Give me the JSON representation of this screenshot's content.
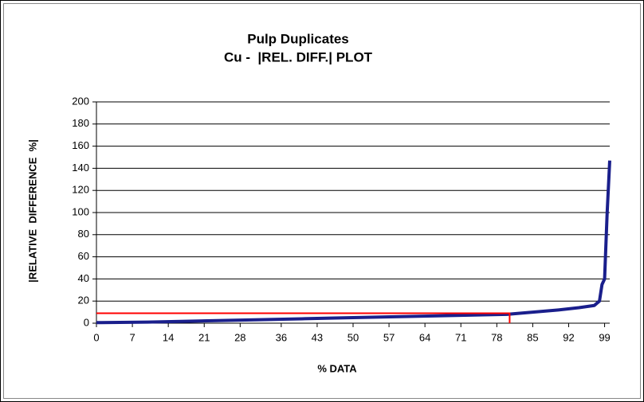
{
  "chart_data": {
    "type": "line",
    "title": "Pulp Duplicates",
    "subtitle": "Cu -  |REL. DIFF.| PLOT",
    "x_label": "% DATA",
    "y_label": "|RELATIVE  DIFFERENCE  %|",
    "xlim": [
      0,
      100
    ],
    "ylim": [
      0,
      200
    ],
    "xticks": [
      0,
      7,
      14,
      21,
      28,
      36,
      43,
      50,
      57,
      64,
      71,
      78,
      85,
      92,
      99
    ],
    "yticks": [
      0,
      20,
      40,
      60,
      80,
      100,
      120,
      140,
      160,
      180,
      200
    ],
    "grid": true,
    "series": [
      {
        "color": "#1a1f8c",
        "x": [
          0,
          10,
          20,
          30,
          40,
          50,
          60,
          70,
          80,
          85,
          90,
          94,
          97,
          98,
          98.5,
          99,
          99.5,
          100
        ],
        "values": [
          0.5,
          1,
          2,
          3,
          4,
          5,
          6,
          7,
          8,
          10,
          12,
          14,
          16,
          20,
          35,
          40,
          100,
          147
        ]
      },
      {
        "color": "#ff0000",
        "x": [
          0,
          80.5,
          80.5
        ],
        "values": [
          9,
          9,
          0
        ]
      }
    ]
  }
}
